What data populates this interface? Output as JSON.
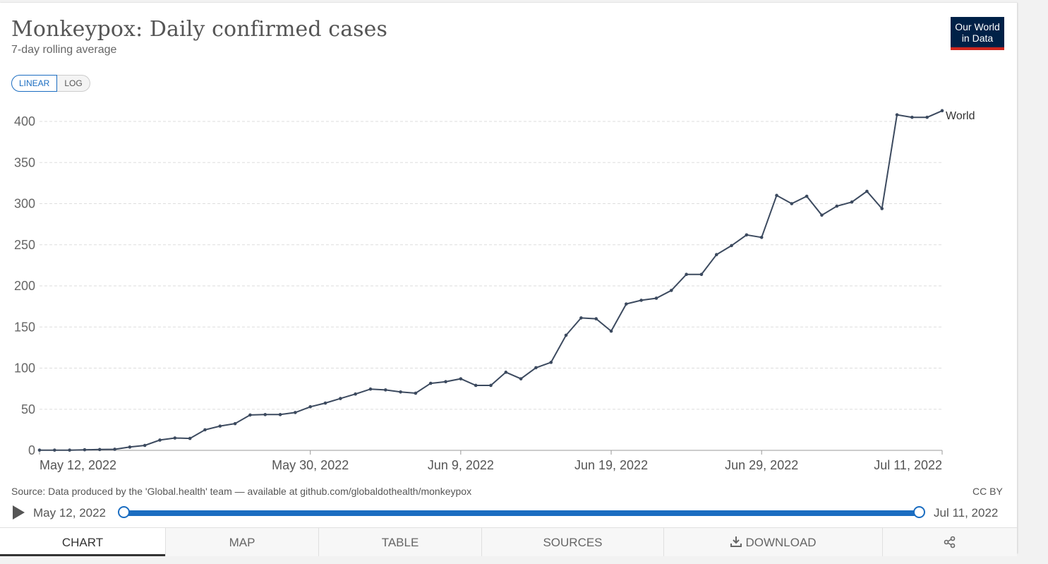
{
  "header": {
    "title": "Monkeypox: Daily confirmed cases",
    "subtitle": "7-day rolling average",
    "logo_line1": "Our World",
    "logo_line2": "in Data"
  },
  "scale_toggle": {
    "linear": "LINEAR",
    "log": "LOG",
    "selected": "LINEAR"
  },
  "footer": {
    "source": "Source: Data produced by the 'Global.health' team — available at github.com/globaldothealth/monkeypox",
    "license": "CC BY"
  },
  "timeline": {
    "start": "May 12, 2022",
    "end": "Jul 11, 2022"
  },
  "tabs": [
    {
      "label": "CHART"
    },
    {
      "label": "MAP"
    },
    {
      "label": "TABLE"
    },
    {
      "label": "SOURCES"
    },
    {
      "label": "DOWNLOAD"
    }
  ],
  "icons": {
    "play": "play-icon",
    "download": "download-icon",
    "share": "share-icon"
  },
  "colors": {
    "line": "#3c4a5f",
    "accent": "#1b6dc1",
    "logo_bg": "#002147",
    "logo_bar": "#ce261e"
  },
  "chart_data": {
    "type": "line",
    "title": "Monkeypox: Daily confirmed cases",
    "subtitle": "7-day rolling average",
    "ylim": [
      0,
      400
    ],
    "yticks": [
      0,
      50,
      100,
      150,
      200,
      250,
      300,
      350,
      400
    ],
    "xlim": [
      "2022-05-12",
      "2022-07-11"
    ],
    "xtick_labels": [
      "May 12, 2022",
      "May 30, 2022",
      "Jun 9, 2022",
      "Jun 19, 2022",
      "Jun 29, 2022",
      "Jul 11, 2022"
    ],
    "xtick_dates": [
      "2022-05-12",
      "2022-05-30",
      "2022-06-09",
      "2022-06-19",
      "2022-06-29",
      "2022-07-11"
    ],
    "grid": true,
    "series": [
      {
        "name": "World",
        "start_date": "2022-05-12",
        "values": [
          0.3,
          0.3,
          0.3,
          0.7,
          1,
          1.3,
          4,
          6,
          12.5,
          15,
          14.5,
          25,
          29.5,
          32.5,
          43,
          43.5,
          43.5,
          46,
          53,
          57.5,
          63,
          68.5,
          74.5,
          73.5,
          71,
          69.5,
          81.5,
          83.5,
          87,
          79,
          79,
          95,
          87,
          100.5,
          107,
          140,
          161,
          160,
          145,
          178,
          182.5,
          185,
          194.5,
          214,
          214,
          238,
          249,
          262,
          259,
          310,
          300,
          309,
          286,
          297,
          302,
          315,
          294,
          408,
          405,
          405,
          413
        ]
      }
    ]
  }
}
